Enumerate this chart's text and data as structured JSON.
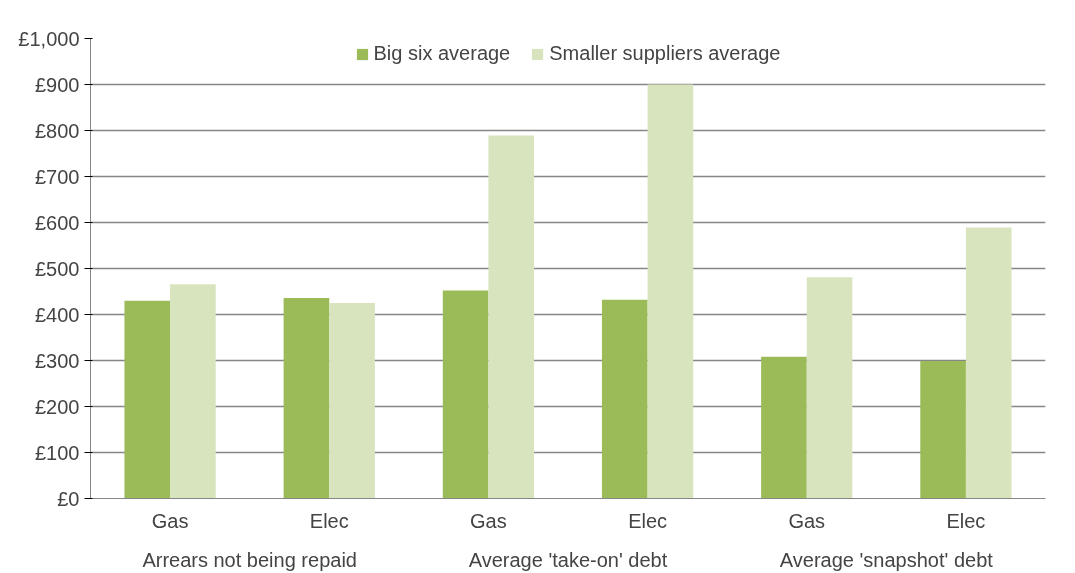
{
  "chart_data": {
    "type": "bar",
    "categories": [
      "Gas",
      "Elec",
      "Gas",
      "Elec",
      "Gas",
      "Elec"
    ],
    "series": [
      {
        "name": "Big six average",
        "color": "#9bbb59",
        "values": [
          430,
          436,
          452,
          432,
          308,
          299
        ]
      },
      {
        "name": "Smaller suppliers average",
        "color": "#d7e4bd",
        "values": [
          466,
          425,
          789,
          900,
          481,
          589
        ]
      }
    ],
    "annotations": [
      "Arrears not being repaid",
      "Average 'take-on' debt",
      "Average 'snapshot' debt"
    ],
    "ylim": [
      0,
      1000
    ],
    "yticks": [
      {
        "value": 0,
        "label": "£0"
      },
      {
        "value": 100,
        "label": "£100"
      },
      {
        "value": 200,
        "label": "£200"
      },
      {
        "value": 300,
        "label": "£300"
      },
      {
        "value": 400,
        "label": "£400"
      },
      {
        "value": 500,
        "label": "£500"
      },
      {
        "value": 600,
        "label": "£600"
      },
      {
        "value": 700,
        "label": "£700"
      },
      {
        "value": 800,
        "label": "£800"
      },
      {
        "value": 900,
        "label": "£900"
      },
      {
        "value": 1000,
        "label": "£1,000"
      }
    ],
    "grid": "y",
    "legend": "top left"
  }
}
